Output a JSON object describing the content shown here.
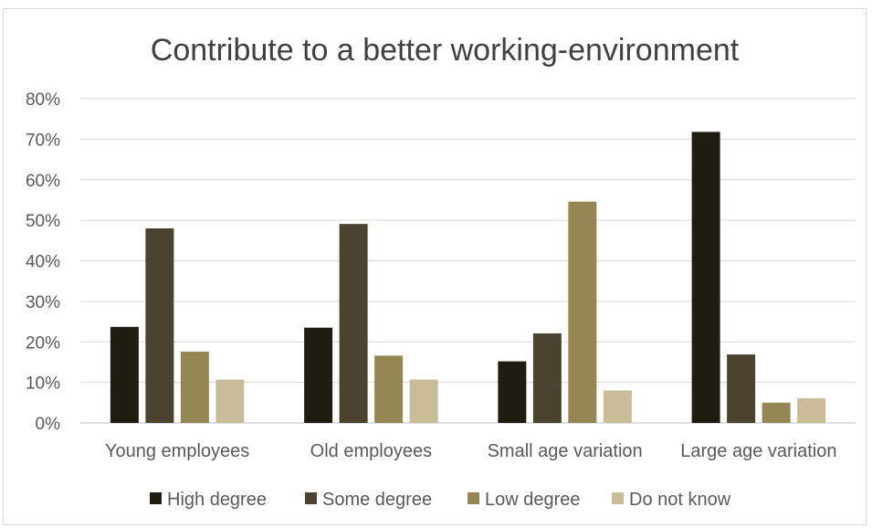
{
  "chart_data": {
    "type": "bar",
    "title": "Contribute to a better working-environment",
    "xlabel": "",
    "ylabel": "",
    "ylim": [
      0,
      0.8
    ],
    "yticks": [
      "0%",
      "10%",
      "20%",
      "30%",
      "40%",
      "50%",
      "60%",
      "70%",
      "80%"
    ],
    "categories": [
      "Young employees",
      "Old employees",
      "Small age variation",
      "Large age variation"
    ],
    "series": [
      {
        "name": "High degree",
        "color": "#1f1c12",
        "values": [
          0.237,
          0.235,
          0.152,
          0.718
        ]
      },
      {
        "name": "Some degree",
        "color": "#4a432f",
        "values": [
          0.48,
          0.491,
          0.221,
          0.169
        ]
      },
      {
        "name": "Low degree",
        "color": "#948753",
        "values": [
          0.176,
          0.166,
          0.546,
          0.05
        ]
      },
      {
        "name": "Do not know",
        "color": "#c8bd98",
        "values": [
          0.107,
          0.107,
          0.08,
          0.061
        ]
      }
    ],
    "grid": true,
    "legend_position": "bottom"
  }
}
